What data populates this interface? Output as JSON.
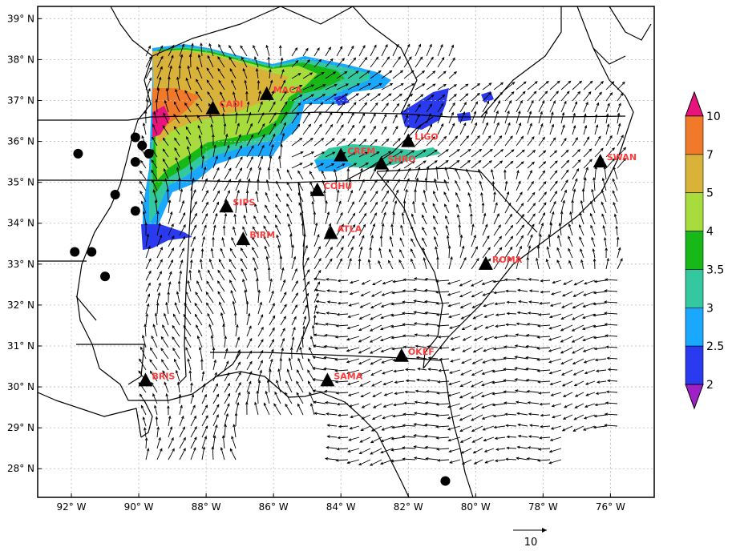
{
  "map": {
    "lat_labels": [
      "39° N",
      "38° N",
      "37° N",
      "36° N",
      "35° N",
      "34° N",
      "33° N",
      "32° N",
      "31° N",
      "30° N",
      "29° N",
      "28° N"
    ],
    "lon_labels": [
      "92° W",
      "90° W",
      "88° W",
      "86° W",
      "84° W",
      "82° W",
      "80° W",
      "78° W",
      "76° W"
    ],
    "lat_values": [
      39,
      38,
      37,
      36,
      35,
      34,
      33,
      32,
      31,
      30,
      29,
      28
    ],
    "lon_values": [
      -92,
      -90,
      -88,
      -86,
      -84,
      -82,
      -80,
      -78,
      -76
    ],
    "extent": {
      "lon_min": -93.0,
      "lon_max": -74.7,
      "lat_min": 27.3,
      "lat_max": 39.3
    },
    "grid": true,
    "stations": [
      {
        "name": "CADI",
        "lon": -87.8,
        "lat": 36.8
      },
      {
        "name": "MACA",
        "lon": -86.2,
        "lat": 37.15
      },
      {
        "name": "LIGO",
        "lon": -82.0,
        "lat": 36.0
      },
      {
        "name": "CREM",
        "lon": -84.0,
        "lat": 35.65
      },
      {
        "name": "SHRO",
        "lon": -82.8,
        "lat": 35.45
      },
      {
        "name": "COHU",
        "lon": -84.7,
        "lat": 34.8
      },
      {
        "name": "SWAN",
        "lon": -76.3,
        "lat": 35.5
      },
      {
        "name": "SIPS",
        "lon": -87.4,
        "lat": 34.4
      },
      {
        "name": "BIRM",
        "lon": -86.9,
        "lat": 33.6
      },
      {
        "name": "ATLA",
        "lon": -84.3,
        "lat": 33.75
      },
      {
        "name": "ROMA",
        "lon": -79.7,
        "lat": 33.0
      },
      {
        "name": "OKEF",
        "lon": -82.2,
        "lat": 30.75
      },
      {
        "name": "BRIS",
        "lon": -89.8,
        "lat": 30.15
      },
      {
        "name": "SAMA",
        "lon": -84.4,
        "lat": 30.15
      }
    ],
    "dots": [
      {
        "lon": -91.8,
        "lat": 35.7
      },
      {
        "lon": -90.1,
        "lat": 36.1
      },
      {
        "lon": -89.9,
        "lat": 35.9
      },
      {
        "lon": -89.7,
        "lat": 35.7
      },
      {
        "lon": -90.1,
        "lat": 35.5
      },
      {
        "lon": -90.7,
        "lat": 34.7
      },
      {
        "lon": -90.1,
        "lat": 34.3
      },
      {
        "lon": -91.9,
        "lat": 33.3
      },
      {
        "lon": -91.4,
        "lat": 33.3
      },
      {
        "lon": -91.0,
        "lat": 32.7
      },
      {
        "lon": -80.9,
        "lat": 27.7
      }
    ]
  },
  "colorbar": {
    "labels": [
      "10",
      "7",
      "5",
      "4",
      "3.5",
      "3",
      "2.5",
      "2"
    ],
    "colors": [
      "#e8147e",
      "#f07a2a",
      "#d9b23a",
      "#a8dc3c",
      "#18b818",
      "#33c8a0",
      "#1aa8ff",
      "#2a3aee",
      "#a020c8"
    ]
  },
  "reference_vector": {
    "label": "10"
  },
  "colors": {
    "vector": "#000000",
    "station_label": "#ff3b3b",
    "grid": "#b8b8b8"
  }
}
